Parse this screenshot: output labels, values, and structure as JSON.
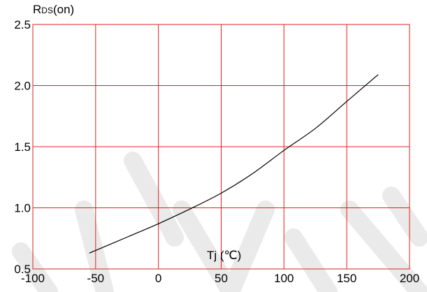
{
  "chart_data": {
    "type": "line",
    "title": "",
    "ylabel": "R",
    "ylabel_sub": "DS",
    "ylabel_tail": "(on)",
    "xlabel": "Tj (℃)",
    "xlim": [
      -100,
      200
    ],
    "ylim": [
      0.5,
      2.5
    ],
    "x_ticks": [
      -100,
      -50,
      0,
      50,
      100,
      150,
      200
    ],
    "x_tick_labels": [
      "-100",
      "-50",
      "0",
      "50",
      "100",
      "150",
      "200"
    ],
    "y_ticks": [
      0.5,
      1.0,
      1.5,
      2.0,
      2.5
    ],
    "y_tick_labels": [
      "0.5",
      "1.0",
      "1.5",
      "2.0",
      "2.5"
    ],
    "grid": true,
    "series": [
      {
        "x": [
          -55,
          -25,
          0,
          25,
          50,
          75,
          100,
          125,
          150,
          175
        ],
        "y": [
          0.63,
          0.76,
          0.87,
          0.99,
          1.12,
          1.28,
          1.47,
          1.65,
          1.87,
          2.09
        ]
      }
    ],
    "colors": {
      "grid": "#e02020",
      "line": "#000000",
      "watermark": "#d9d9d9"
    }
  }
}
